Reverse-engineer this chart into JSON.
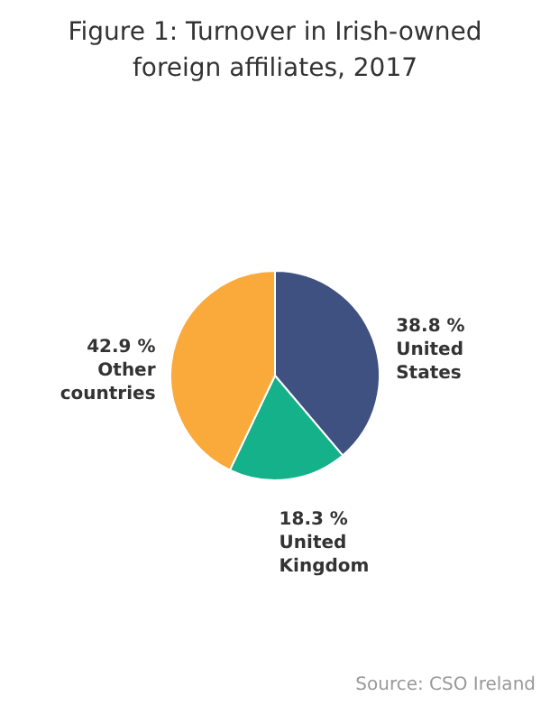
{
  "chart_data": {
    "type": "pie",
    "title": "Figure 1: Turnover in Irish-owned foreign affiliates, 2017",
    "categories": [
      "United States",
      "United Kingdom",
      "Other countries"
    ],
    "values": [
      38.8,
      18.3,
      42.9
    ],
    "colors": [
      "#3f5181",
      "#14b18a",
      "#f9aa3a"
    ],
    "value_labels": [
      "38.8 %",
      "18.3 %",
      "42.9 %"
    ],
    "annotations": [
      "Source: CSO Ireland"
    ]
  }
}
